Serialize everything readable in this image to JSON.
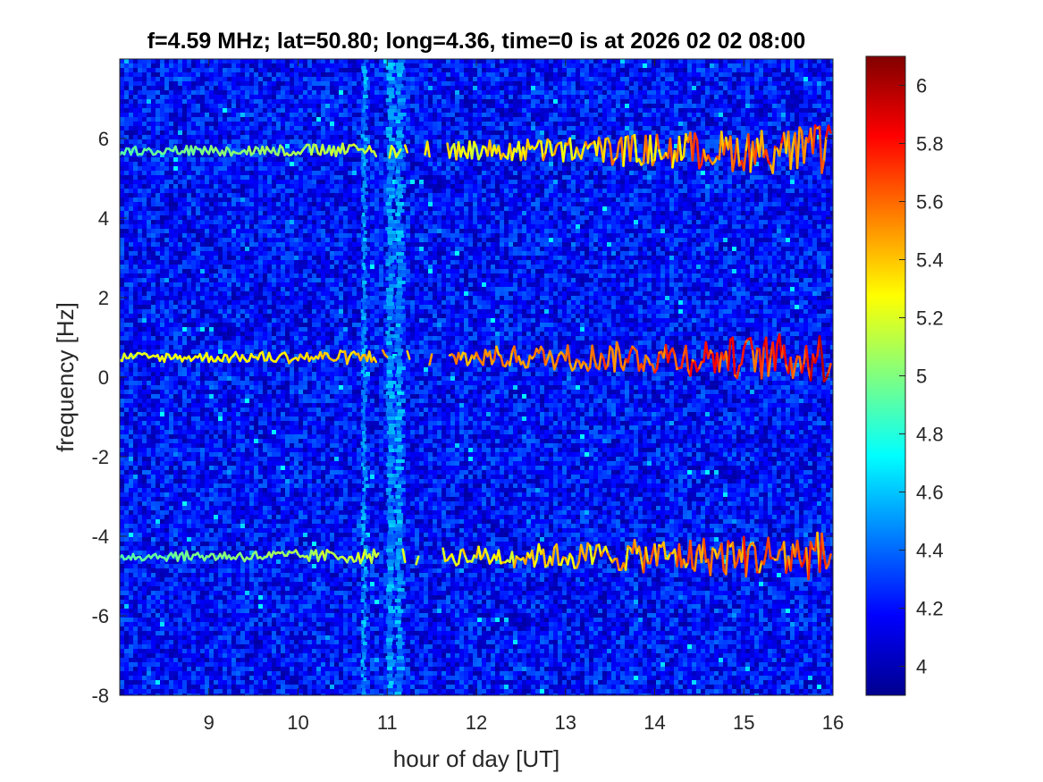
{
  "chart_data": {
    "type": "heatmap",
    "title": "f=4.59 MHz;  lat=50.80; long=4.36, time=0 is at 2026 02 02 08:00",
    "xlabel": "hour of day [UT]",
    "ylabel": "frequency [Hz]",
    "xlim": [
      8,
      16
    ],
    "ylim": [
      -8,
      8
    ],
    "xticks": [
      "9",
      "10",
      "11",
      "12",
      "13",
      "14",
      "15",
      "16"
    ],
    "yticks": [
      "-8",
      "-6",
      "-4",
      "-2",
      "0",
      "2",
      "4",
      "6"
    ],
    "colormap": "jet",
    "clim": [
      3.9,
      6.1
    ],
    "colorbar_ticks": [
      "4",
      "4.2",
      "4.4",
      "4.6",
      "4.8",
      "5",
      "5.2",
      "5.4",
      "5.6",
      "5.8",
      "6"
    ],
    "background_level": 4.2,
    "bands": [
      {
        "center_hz": 5.7,
        "intensity_start": 4.9,
        "intensity_end": 5.8
      },
      {
        "center_hz": 0.5,
        "intensity_start": 5.2,
        "intensity_end": 5.9
      },
      {
        "center_hz": -4.5,
        "intensity_start": 4.9,
        "intensity_end": 5.8
      }
    ],
    "vertical_streaks_hours": [
      10.75,
      11.05,
      11.15
    ]
  }
}
